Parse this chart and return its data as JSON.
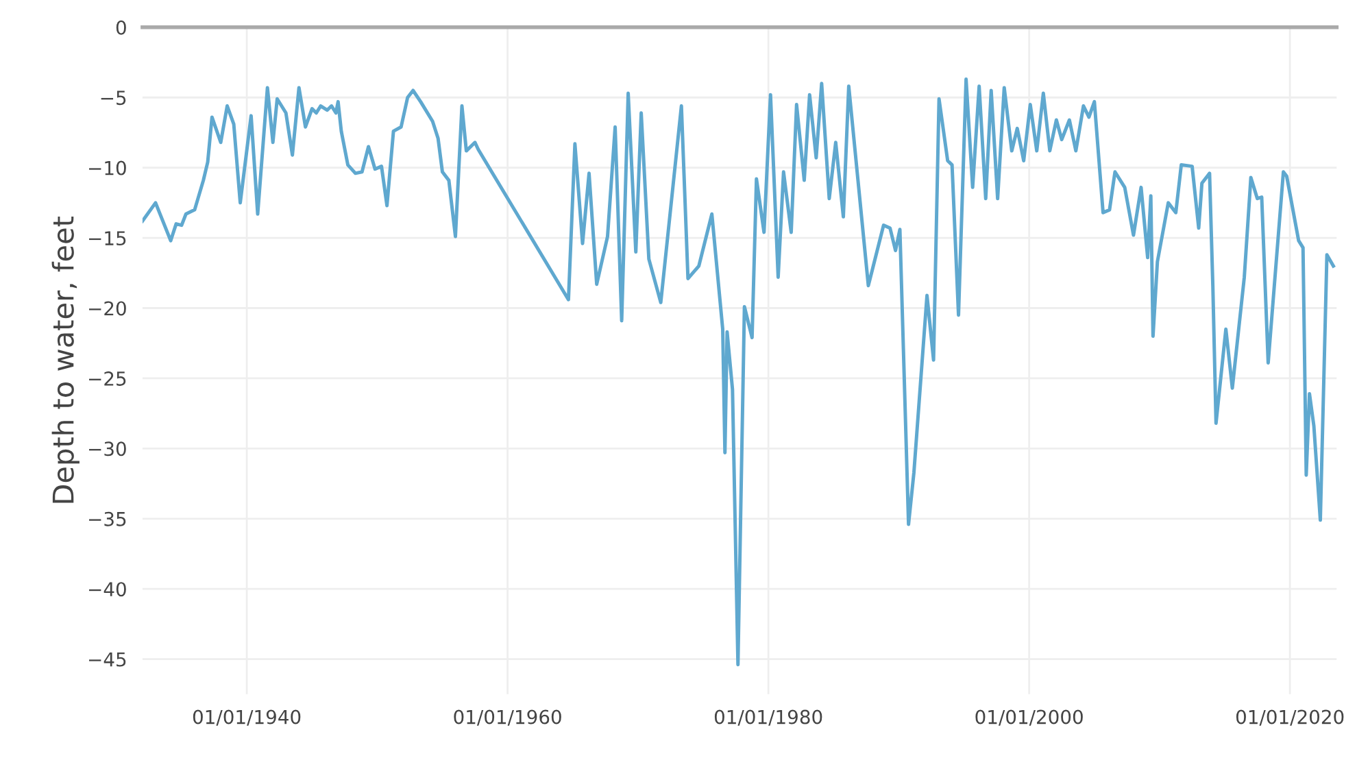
{
  "chart_data": {
    "type": "line",
    "ylabel": "Depth to water, feet",
    "x": [
      "1932-01",
      "1933-01",
      "1934-03",
      "1934-08",
      "1935-01",
      "1935-05",
      "1936-01",
      "1936-09",
      "1937-01",
      "1937-05",
      "1938-01",
      "1938-07",
      "1939-01",
      "1939-07",
      "1940-05",
      "1940-11",
      "1941-08",
      "1942-01",
      "1942-05",
      "1943-01",
      "1943-07",
      "1944-01",
      "1944-07",
      "1945-01",
      "1945-05",
      "1945-09",
      "1946-03",
      "1946-07",
      "1946-11",
      "1947-01",
      "1947-04",
      "1947-10",
      "1948-05",
      "1948-11",
      "1949-05",
      "1949-11",
      "1950-05",
      "1950-10",
      "1951-04",
      "1951-11",
      "1952-05",
      "1952-10",
      "1953-05",
      "1954-04",
      "1954-09",
      "1955-01",
      "1955-07",
      "1956-01",
      "1956-07",
      "1956-11",
      "1957-07",
      "1957-10",
      "1964-09",
      "1965-03",
      "1965-10",
      "1966-04",
      "1966-11",
      "1967-09",
      "1968-04",
      "1968-10",
      "1969-04",
      "1969-11",
      "1970-04",
      "1970-11",
      "1971-10",
      "1973-05",
      "1973-11",
      "1974-09",
      "1975-09",
      "1976-07",
      "1976-09",
      "1976-11",
      "1977-04",
      "1977-09",
      "1978-03",
      "1978-10",
      "1979-02",
      "1979-09",
      "1980-03",
      "1980-10",
      "1981-03",
      "1981-10",
      "1982-03",
      "1982-10",
      "1983-03",
      "1983-09",
      "1984-02",
      "1984-09",
      "1985-03",
      "1985-10",
      "1986-03",
      "1987-09",
      "1988-11",
      "1989-05",
      "1989-10",
      "1990-02",
      "1990-10",
      "1991-03",
      "1992-03",
      "1992-09",
      "1993-02",
      "1993-10",
      "1994-02",
      "1994-08",
      "1995-03",
      "1995-09",
      "1996-03",
      "1996-09",
      "1997-02",
      "1997-08",
      "1998-02",
      "1998-09",
      "1999-02",
      "1999-08",
      "2000-02",
      "2000-08",
      "2001-02",
      "2001-08",
      "2002-02",
      "2002-07",
      "2003-02",
      "2003-08",
      "2004-03",
      "2004-08",
      "2005-01",
      "2005-09",
      "2006-03",
      "2006-08",
      "2007-05",
      "2008-01",
      "2008-08",
      "2009-02",
      "2009-05",
      "2009-07",
      "2009-11",
      "2010-09",
      "2011-04",
      "2011-09",
      "2012-07",
      "2013-01",
      "2013-04",
      "2013-11",
      "2014-02",
      "2014-05",
      "2015-02",
      "2015-08",
      "2016-07",
      "2017-01",
      "2017-07",
      "2017-11",
      "2018-05",
      "2019-07",
      "2019-10",
      "2020-09",
      "2021-01",
      "2021-04",
      "2021-07",
      "2021-11",
      "2022-05",
      "2022-11",
      "2023-05"
    ],
    "series": [
      {
        "color": "#5fa8cf",
        "values": [
          -13.8,
          -12.5,
          -15.2,
          -14.0,
          -14.1,
          -13.3,
          -13.0,
          -10.9,
          -9.6,
          -6.4,
          -8.2,
          -5.6,
          -6.9,
          -12.5,
          -6.3,
          -13.3,
          -4.3,
          -8.2,
          -5.1,
          -6.1,
          -9.1,
          -4.3,
          -7.1,
          -5.8,
          -6.1,
          -5.6,
          -5.9,
          -5.6,
          -6.1,
          -5.3,
          -7.4,
          -9.8,
          -10.4,
          -10.3,
          -8.5,
          -10.1,
          -9.9,
          -12.7,
          -7.4,
          -7.1,
          -5.0,
          -4.5,
          -5.3,
          -6.7,
          -7.9,
          -10.3,
          -10.9,
          -14.9,
          -5.6,
          -8.8,
          -8.2,
          -8.7,
          -19.4,
          -8.3,
          -15.4,
          -10.4,
          -18.3,
          -14.9,
          -7.1,
          -20.9,
          -4.7,
          -16.0,
          -6.1,
          -16.5,
          -19.6,
          -5.6,
          -17.9,
          -17.0,
          -13.3,
          -21.5,
          -30.3,
          -21.7,
          -25.8,
          -45.4,
          -19.9,
          -22.1,
          -10.8,
          -14.6,
          -4.8,
          -17.8,
          -10.3,
          -14.6,
          -5.5,
          -10.9,
          -4.8,
          -9.3,
          -4.0,
          -12.2,
          -8.2,
          -13.5,
          -4.2,
          -18.4,
          -14.1,
          -14.3,
          -15.9,
          -14.4,
          -35.4,
          -31.7,
          -19.1,
          -23.7,
          -5.1,
          -9.5,
          -9.8,
          -20.5,
          -3.7,
          -11.4,
          -4.2,
          -12.2,
          -4.5,
          -12.2,
          -4.3,
          -8.8,
          -7.2,
          -9.5,
          -5.5,
          -8.8,
          -4.7,
          -8.8,
          -6.6,
          -8.0,
          -6.6,
          -8.8,
          -5.6,
          -6.4,
          -5.3,
          -13.2,
          -13.0,
          -10.3,
          -11.4,
          -14.8,
          -11.4,
          -16.4,
          -12.0,
          -22.0,
          -16.7,
          -12.5,
          -13.2,
          -9.8,
          -9.9,
          -14.3,
          -11.1,
          -10.4,
          -18.4,
          -28.2,
          -21.5,
          -25.7,
          -17.8,
          -10.7,
          -12.2,
          -12.1,
          -23.9,
          -10.3,
          -10.6,
          -15.2,
          -15.7,
          -31.9,
          -26.1,
          -28.4,
          -35.1,
          -16.2,
          -17.0
        ]
      }
    ],
    "xlim": [
      "1932-01",
      "2023-08"
    ],
    "xticks": [
      {
        "value": "1940-01-01",
        "label": "01/01/1940"
      },
      {
        "value": "1960-01-01",
        "label": "01/01/1960"
      },
      {
        "value": "1980-01-01",
        "label": "01/01/1980"
      },
      {
        "value": "2000-01-01",
        "label": "01/01/2000"
      },
      {
        "value": "2020-01-01",
        "label": "01/01/2020"
      }
    ],
    "ylim": [
      -47.5,
      0
    ],
    "yticks": [
      {
        "value": -45,
        "label": "−45"
      },
      {
        "value": -40,
        "label": "−40"
      },
      {
        "value": -35,
        "label": "−35"
      },
      {
        "value": -30,
        "label": "−30"
      },
      {
        "value": -25,
        "label": "−25"
      },
      {
        "value": -20,
        "label": "−20"
      },
      {
        "value": -15,
        "label": "−15"
      },
      {
        "value": -10,
        "label": "−10"
      },
      {
        "value": -5,
        "label": "−5"
      },
      {
        "value": 0,
        "label": "0"
      }
    ],
    "grid": true
  }
}
